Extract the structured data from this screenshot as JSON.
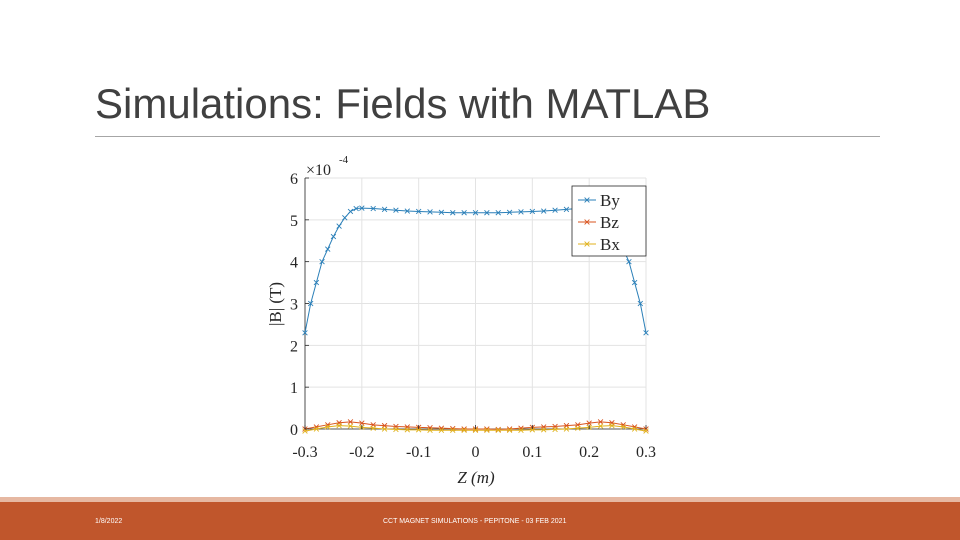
{
  "slide": {
    "title": "Simulations: Fields with MATLAB",
    "footer_date": "1/8/2022",
    "footer_text": "CCT MAGNET SIMULATIONS - PEPITONE - 03 FEB 2021",
    "footer_color": "#c0562c"
  },
  "chart_data": {
    "type": "line",
    "xlabel": "Z (m)",
    "ylabel": "|B| (T)",
    "exponent_label": "×10",
    "exponent_power": "-4",
    "xlim": [
      -0.3,
      0.3
    ],
    "ylim": [
      0,
      6
    ],
    "x_ticks": [
      "-0.3",
      "-0.2",
      "-0.1",
      "0",
      "0.1",
      "0.2",
      "0.3"
    ],
    "y_ticks": [
      "0",
      "1",
      "2",
      "3",
      "4",
      "5",
      "6"
    ],
    "grid": true,
    "legend_position": "top-right",
    "series": [
      {
        "name": "By",
        "color": "#2a7fb8",
        "x": [
          -0.3,
          -0.29,
          -0.28,
          -0.27,
          -0.26,
          -0.25,
          -0.24,
          -0.23,
          -0.22,
          -0.21,
          -0.2,
          -0.18,
          -0.16,
          -0.14,
          -0.12,
          -0.1,
          -0.08,
          -0.06,
          -0.04,
          -0.02,
          0,
          0.02,
          0.04,
          0.06,
          0.08,
          0.1,
          0.12,
          0.14,
          0.16,
          0.18,
          0.2,
          0.21,
          0.22,
          0.23,
          0.24,
          0.25,
          0.26,
          0.27,
          0.28,
          0.29,
          0.3
        ],
        "values": [
          2.3,
          3.0,
          3.5,
          4.0,
          4.3,
          4.6,
          4.85,
          5.05,
          5.2,
          5.27,
          5.28,
          5.27,
          5.25,
          5.23,
          5.21,
          5.2,
          5.19,
          5.18,
          5.17,
          5.17,
          5.17,
          5.17,
          5.17,
          5.18,
          5.19,
          5.2,
          5.21,
          5.23,
          5.25,
          5.27,
          5.28,
          5.27,
          5.2,
          5.05,
          4.85,
          4.6,
          4.3,
          4.0,
          3.5,
          3.0,
          2.3
        ]
      },
      {
        "name": "Bz",
        "color": "#d9531e",
        "x": [
          -0.3,
          -0.28,
          -0.26,
          -0.24,
          -0.22,
          -0.2,
          -0.18,
          -0.16,
          -0.14,
          -0.12,
          -0.1,
          -0.08,
          -0.06,
          -0.04,
          -0.02,
          0,
          0.02,
          0.04,
          0.06,
          0.08,
          0.1,
          0.12,
          0.14,
          0.16,
          0.18,
          0.2,
          0.22,
          0.24,
          0.26,
          0.28,
          0.3
        ],
        "values": [
          0.0,
          0.05,
          0.1,
          0.15,
          0.17,
          0.14,
          0.1,
          0.08,
          0.06,
          0.05,
          0.04,
          0.03,
          0.02,
          0.01,
          0.0,
          0.0,
          0.0,
          -0.01,
          0.0,
          0.02,
          0.04,
          0.05,
          0.06,
          0.08,
          0.1,
          0.14,
          0.17,
          0.15,
          0.1,
          0.05,
          0.0
        ]
      },
      {
        "name": "Bx",
        "color": "#e0b21c",
        "x": [
          -0.3,
          -0.28,
          -0.26,
          -0.24,
          -0.22,
          -0.2,
          -0.18,
          -0.16,
          -0.14,
          -0.12,
          -0.1,
          -0.08,
          -0.06,
          -0.04,
          -0.02,
          0,
          0.02,
          0.04,
          0.06,
          0.08,
          0.1,
          0.12,
          0.14,
          0.16,
          0.18,
          0.2,
          0.22,
          0.24,
          0.26,
          0.28,
          0.3
        ],
        "values": [
          -0.05,
          0.0,
          0.05,
          0.08,
          0.07,
          0.04,
          0.02,
          0.0,
          -0.01,
          -0.02,
          -0.02,
          -0.03,
          -0.03,
          -0.03,
          -0.03,
          -0.03,
          -0.03,
          -0.03,
          -0.03,
          -0.03,
          -0.02,
          -0.02,
          -0.01,
          0.0,
          0.02,
          0.04,
          0.07,
          0.08,
          0.05,
          0.0,
          -0.05
        ]
      }
    ]
  }
}
